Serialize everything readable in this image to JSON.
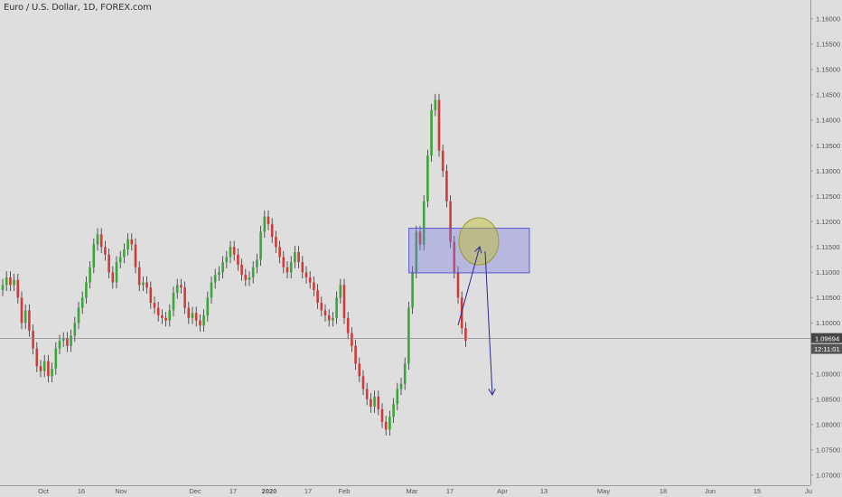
{
  "chart_title": "Euro / U.S. Dollar, 1D, FOREX.com",
  "chart_data": {
    "type": "candlestick",
    "title": "Euro / U.S. Dollar, 1D, FOREX.com",
    "ylim": [
      1.068,
      1.163
    ],
    "y_ticks": [
      "1.16000",
      "1.15500",
      "1.15000",
      "1.14500",
      "1.14000",
      "1.13500",
      "1.13000",
      "1.12500",
      "1.12000",
      "1.11500",
      "1.11000",
      "1.10500",
      "1.10000",
      "1.09500",
      "1.09000",
      "1.08500",
      "1.08000",
      "1.07500",
      "1.07000"
    ],
    "x_ticks": [
      {
        "label": "Oct",
        "bold": false
      },
      {
        "label": "16",
        "bold": false
      },
      {
        "label": "Nov",
        "bold": false
      },
      {
        "label": "Dec",
        "bold": false
      },
      {
        "label": "17",
        "bold": false
      },
      {
        "label": "2020",
        "bold": true
      },
      {
        "label": "17",
        "bold": false
      },
      {
        "label": "Feb",
        "bold": false
      },
      {
        "label": "Mar",
        "bold": false
      },
      {
        "label": "17",
        "bold": false
      },
      {
        "label": "Apr",
        "bold": false
      },
      {
        "label": "13",
        "bold": false
      },
      {
        "label": "May",
        "bold": false
      },
      {
        "label": "18",
        "bold": false
      },
      {
        "label": "Jun",
        "bold": false
      },
      {
        "label": "15",
        "bold": false
      },
      {
        "label": "Ju",
        "bold": false
      }
    ],
    "last_price": "1.09694",
    "last_price_value": 1.09694,
    "countdown": "12:11:01",
    "up_color": "#3aa53a",
    "down_color": "#d23a3a",
    "closes": [
      1.1075,
      1.109,
      1.1075,
      1.1085,
      1.105,
      1.1,
      1.1025,
      1.0985,
      1.095,
      1.0915,
      1.0905,
      1.0925,
      1.0895,
      1.091,
      1.095,
      1.0965,
      1.097,
      1.0955,
      1.0975,
      1.1,
      1.103,
      1.105,
      1.108,
      1.111,
      1.1155,
      1.1175,
      1.115,
      1.1135,
      1.11,
      1.108,
      1.112,
      1.113,
      1.1145,
      1.1165,
      1.1155,
      1.111,
      1.1075,
      1.108,
      1.107,
      1.104,
      1.103,
      1.1015,
      1.101,
      1.1005,
      1.1025,
      1.106,
      1.1075,
      1.107,
      1.103,
      1.101,
      1.102,
      1.1005,
      1.0995,
      1.1015,
      1.105,
      1.108,
      1.1095,
      1.11,
      1.112,
      1.113,
      1.115,
      1.1135,
      1.1115,
      1.1095,
      1.1085,
      1.109,
      1.111,
      1.1125,
      1.118,
      1.121,
      1.1195,
      1.117,
      1.115,
      1.113,
      1.111,
      1.11,
      1.112,
      1.114,
      1.112,
      1.11,
      1.109,
      1.108,
      1.1065,
      1.104,
      1.1025,
      1.1015,
      1.1005,
      1.101,
      1.105,
      1.1075,
      1.101,
      1.098,
      1.0955,
      1.092,
      1.0895,
      1.087,
      1.085,
      1.0835,
      1.0855,
      1.083,
      1.0805,
      1.079,
      1.0815,
      1.084,
      1.087,
      1.088,
      1.092,
      1.103,
      1.11,
      1.118,
      1.1155,
      1.124,
      1.133,
      1.142,
      1.144,
      1.134,
      1.13,
      1.124,
      1.116,
      1.11,
      1.105,
      1.099,
      1.0965
    ]
  }
}
